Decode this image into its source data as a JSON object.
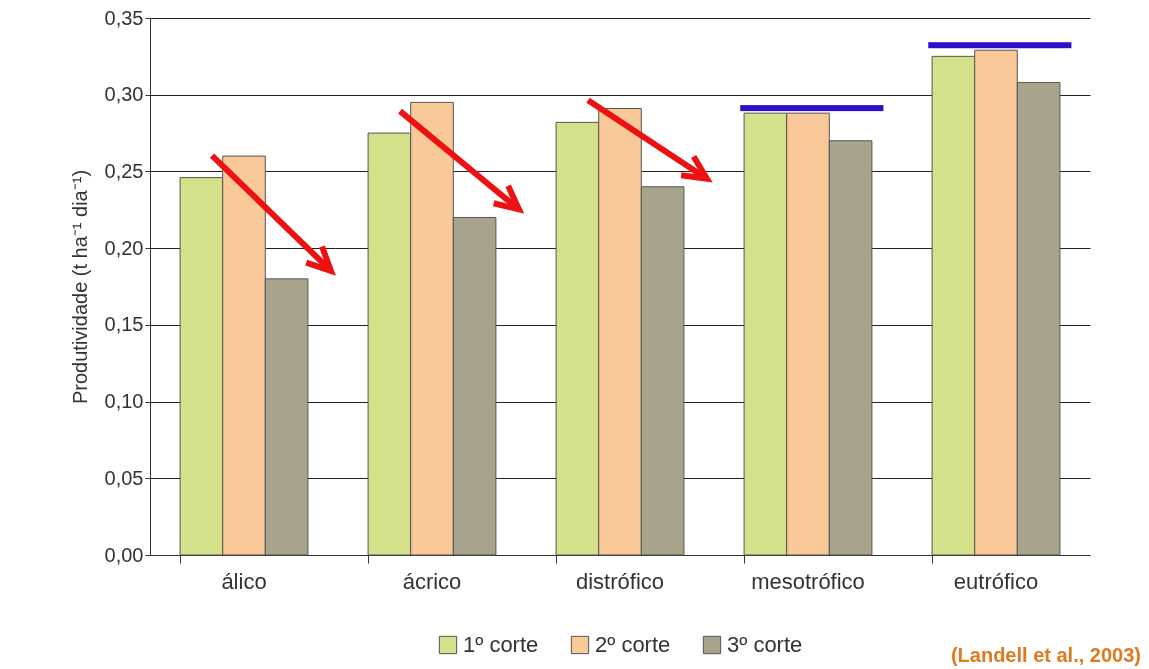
{
  "chart_data": {
    "type": "bar",
    "ylabel": "Produtividade (t ha⁻¹ dia⁻¹)",
    "categories": [
      "álico",
      "ácrico",
      "distrófico",
      "mesotrófico",
      "eutrófico"
    ],
    "series": [
      {
        "name": "1º corte",
        "color": "#d4e18a",
        "values": [
          0.246,
          0.275,
          0.282,
          0.288,
          0.325
        ]
      },
      {
        "name": "2º corte",
        "color": "#f9c99a",
        "values": [
          0.26,
          0.295,
          0.291,
          0.288,
          0.329
        ]
      },
      {
        "name": "3º corte",
        "color": "#a8a48c",
        "values": [
          0.18,
          0.22,
          0.24,
          0.27,
          0.308
        ]
      }
    ],
    "ylim": [
      0,
      0.35
    ],
    "yticks": [
      {
        "value": 0,
        "label": "0,00"
      },
      {
        "value": 0.05,
        "label": "0,05"
      },
      {
        "value": 0.1,
        "label": "0,10"
      },
      {
        "value": 0.15,
        "label": "0,15"
      },
      {
        "value": 0.2,
        "label": "0,20"
      },
      {
        "value": 0.25,
        "label": "0,25"
      },
      {
        "value": 0.3,
        "label": "0,30"
      },
      {
        "value": 0.35,
        "label": "0,35"
      }
    ],
    "grid": "y",
    "legend": "bottom",
    "annotations": [
      "(Landell et al., 2003)"
    ]
  }
}
